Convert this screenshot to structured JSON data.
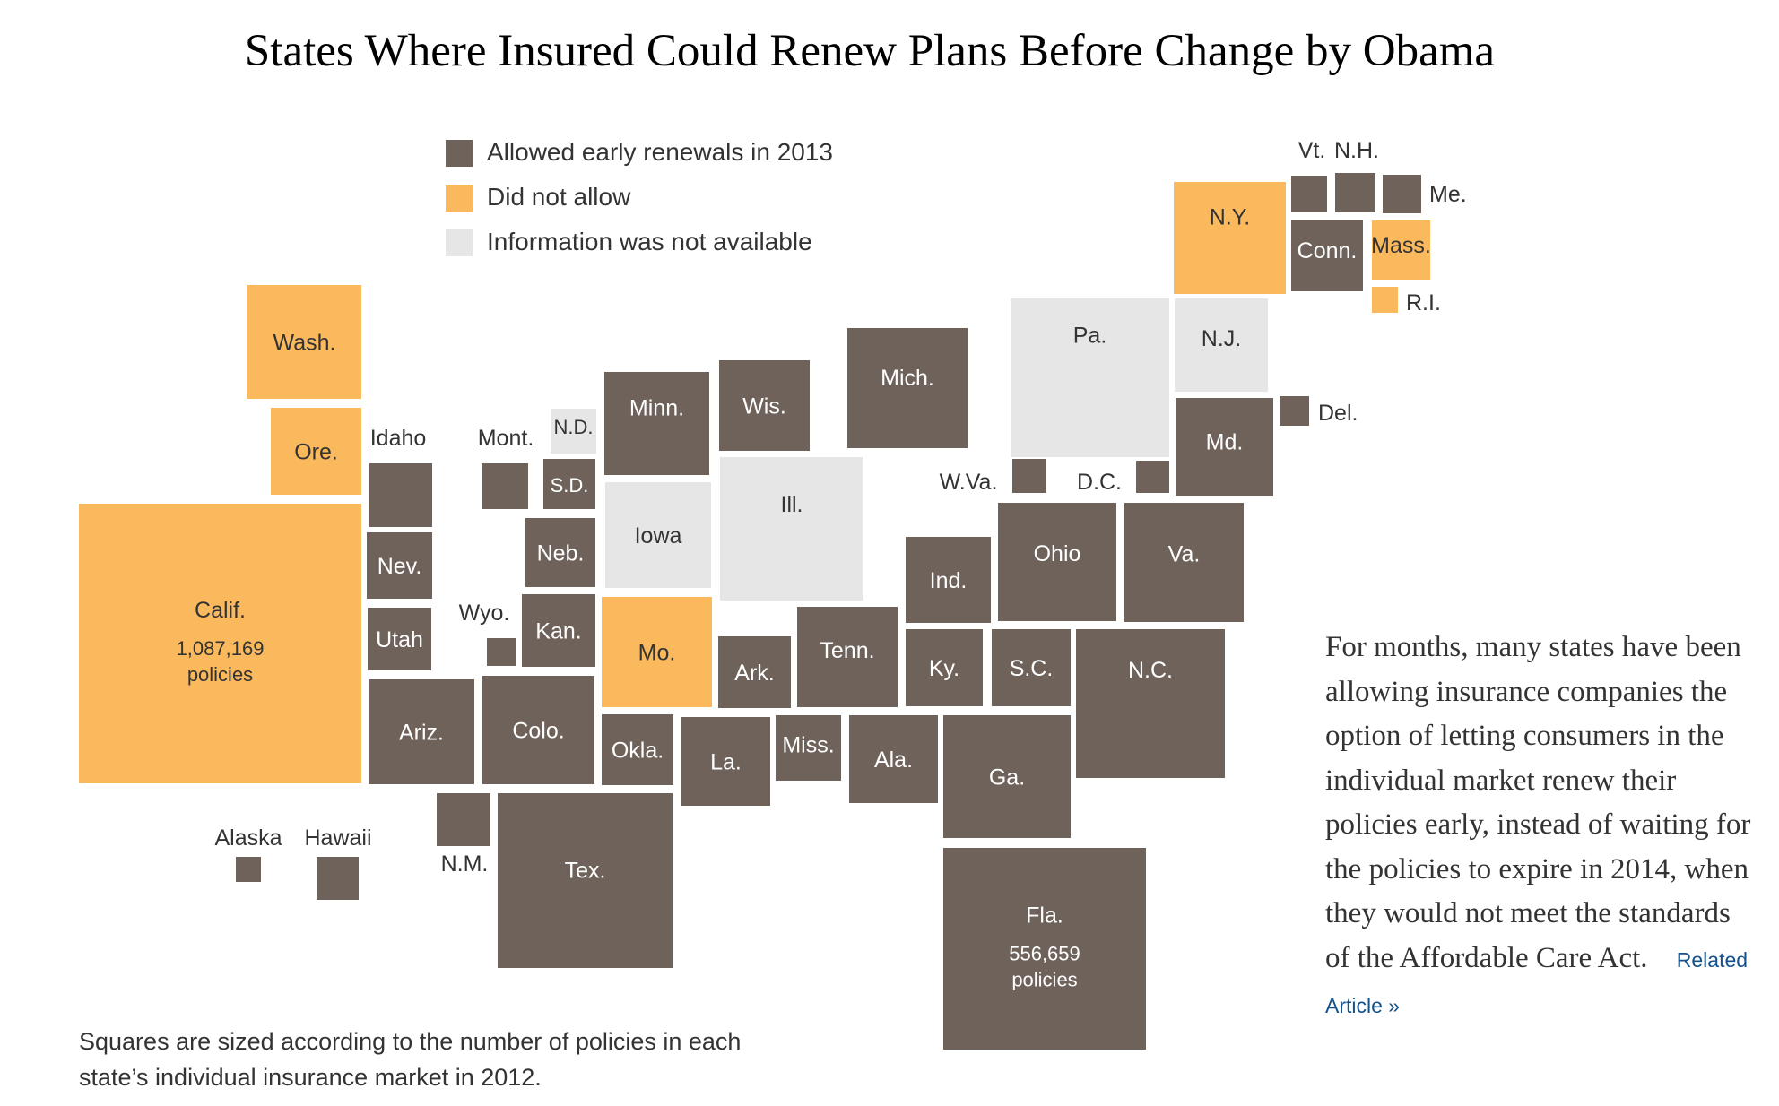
{
  "title": "States Where Insured Could Renew Plans Before Change by Obama",
  "colors": {
    "allowed": "#6e625a",
    "did_not_allow": "#fbb95e",
    "not_available": "#e6e6e6"
  },
  "legend": [
    {
      "label": "Allowed early renewals in 2013",
      "status": "allowed"
    },
    {
      "label": "Did not allow",
      "status": "did_not_allow"
    },
    {
      "label": "Information was not available",
      "status": "not_available"
    }
  ],
  "states": [
    {
      "abbr": "Wash.",
      "status": "did_not_allow"
    },
    {
      "abbr": "Ore.",
      "status": "did_not_allow"
    },
    {
      "abbr": "Calif.",
      "status": "did_not_allow",
      "policies": "1,087,169",
      "policies_label": "policies"
    },
    {
      "abbr": "Idaho",
      "status": "allowed"
    },
    {
      "abbr": "Nev.",
      "status": "allowed"
    },
    {
      "abbr": "Utah",
      "status": "allowed"
    },
    {
      "abbr": "Ariz.",
      "status": "allowed"
    },
    {
      "abbr": "Mont.",
      "status": "allowed"
    },
    {
      "abbr": "Wyo.",
      "status": "allowed"
    },
    {
      "abbr": "Colo.",
      "status": "allowed"
    },
    {
      "abbr": "N.M.",
      "status": "allowed"
    },
    {
      "abbr": "N.D.",
      "status": "not_available"
    },
    {
      "abbr": "S.D.",
      "status": "allowed"
    },
    {
      "abbr": "Neb.",
      "status": "allowed"
    },
    {
      "abbr": "Kan.",
      "status": "allowed"
    },
    {
      "abbr": "Okla.",
      "status": "allowed"
    },
    {
      "abbr": "Tex.",
      "status": "allowed"
    },
    {
      "abbr": "Minn.",
      "status": "allowed"
    },
    {
      "abbr": "Iowa",
      "status": "not_available"
    },
    {
      "abbr": "Mo.",
      "status": "did_not_allow"
    },
    {
      "abbr": "Ark.",
      "status": "allowed"
    },
    {
      "abbr": "La.",
      "status": "allowed"
    },
    {
      "abbr": "Wis.",
      "status": "allowed"
    },
    {
      "abbr": "Ill.",
      "status": "not_available"
    },
    {
      "abbr": "Mich.",
      "status": "allowed"
    },
    {
      "abbr": "Ind.",
      "status": "allowed"
    },
    {
      "abbr": "Ky.",
      "status": "allowed"
    },
    {
      "abbr": "Tenn.",
      "status": "allowed"
    },
    {
      "abbr": "Miss.",
      "status": "allowed"
    },
    {
      "abbr": "Ala.",
      "status": "allowed"
    },
    {
      "abbr": "Ohio",
      "status": "allowed"
    },
    {
      "abbr": "Ga.",
      "status": "allowed"
    },
    {
      "abbr": "Fla.",
      "status": "allowed",
      "policies": "556,659",
      "policies_label": "policies"
    },
    {
      "abbr": "S.C.",
      "status": "allowed"
    },
    {
      "abbr": "N.C.",
      "status": "allowed"
    },
    {
      "abbr": "Va.",
      "status": "allowed"
    },
    {
      "abbr": "W.Va.",
      "status": "allowed"
    },
    {
      "abbr": "D.C.",
      "status": "allowed"
    },
    {
      "abbr": "Md.",
      "status": "allowed"
    },
    {
      "abbr": "Del.",
      "status": "allowed"
    },
    {
      "abbr": "Pa.",
      "status": "not_available"
    },
    {
      "abbr": "N.J.",
      "status": "not_available"
    },
    {
      "abbr": "N.Y.",
      "status": "did_not_allow"
    },
    {
      "abbr": "Conn.",
      "status": "allowed"
    },
    {
      "abbr": "Mass.",
      "status": "did_not_allow"
    },
    {
      "abbr": "R.I.",
      "status": "did_not_allow"
    },
    {
      "abbr": "Vt.",
      "status": "allowed"
    },
    {
      "abbr": "N.H.",
      "status": "allowed"
    },
    {
      "abbr": "Me.",
      "status": "allowed"
    },
    {
      "abbr": "Alaska",
      "status": "allowed"
    },
    {
      "abbr": "Hawaii",
      "status": "allowed"
    }
  ],
  "note": "Squares are sized according to the number of policies in each state’s individual insurance market in 2012.",
  "article": {
    "text": "For months, many states have been allowing insurance companies the option of letting consumers in the individual market renew their policies early, instead of waiting for the policies to expire in 2014, when they would not meet the standards of the Affordable Care Act.",
    "link_label": "Related Article »"
  }
}
